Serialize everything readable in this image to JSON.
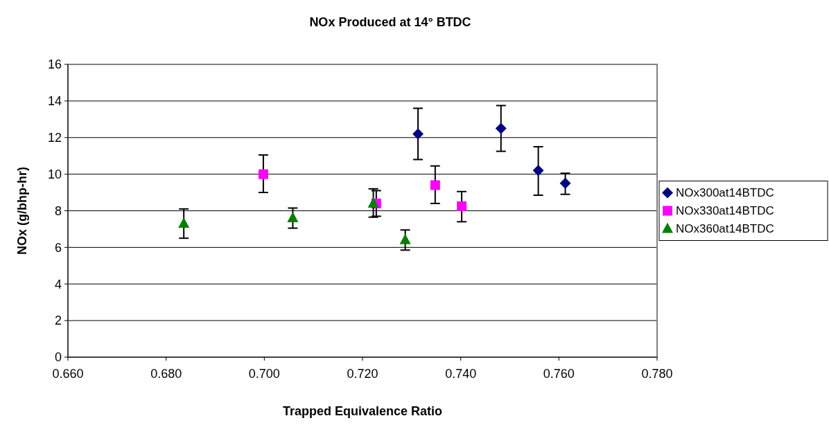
{
  "chart_data": {
    "type": "scatter",
    "title": "NOx Produced at 14° BTDC",
    "xlabel": "Trapped Equivalence Ratio",
    "ylabel": "NOx (g/bhp-hr)",
    "xlim": [
      0.66,
      0.78
    ],
    "xticks": [
      {
        "value": 0.66,
        "label": "0.660"
      },
      {
        "value": 0.68,
        "label": "0.680"
      },
      {
        "value": 0.7,
        "label": "0.700"
      },
      {
        "value": 0.72,
        "label": "0.720"
      },
      {
        "value": 0.74,
        "label": "0.740"
      },
      {
        "value": 0.76,
        "label": "0.760"
      },
      {
        "value": 0.78,
        "label": "0.780"
      }
    ],
    "ylim": [
      0,
      16
    ],
    "yticks": [
      0,
      2,
      4,
      6,
      8,
      10,
      12,
      14,
      16
    ],
    "grid": "y",
    "legend": "right",
    "series": [
      {
        "name": "NOx300at14BTDC",
        "color": "#000080",
        "marker": "diamond",
        "x": [
          0.7313,
          0.7482,
          0.7558,
          0.7613
        ],
        "values": [
          12.2,
          12.5,
          10.2,
          9.5
        ],
        "errors": [
          [
            10.8,
            13.6
          ],
          [
            11.25,
            13.75
          ],
          [
            8.85,
            11.5
          ],
          [
            8.9,
            10.05
          ]
        ]
      },
      {
        "name": "NOx330at14BTDC",
        "color": "#ff00ff",
        "marker": "square",
        "x": [
          0.6998,
          0.7228,
          0.7348,
          0.7402
        ],
        "values": [
          10.0,
          8.4,
          9.4,
          8.25
        ],
        "errors": [
          [
            9.0,
            11.05
          ],
          [
            7.7,
            9.1
          ],
          [
            8.4,
            10.45
          ],
          [
            7.4,
            9.05
          ]
        ]
      },
      {
        "name": "NOx360at14BTDC",
        "color": "#008000",
        "marker": "triangle",
        "x": [
          0.6836,
          0.7058,
          0.7222,
          0.7287
        ],
        "values": [
          7.3,
          7.6,
          8.4,
          6.4
        ],
        "errors": [
          [
            6.5,
            8.1
          ],
          [
            7.05,
            8.15
          ],
          [
            7.65,
            9.2
          ],
          [
            5.85,
            6.95
          ]
        ]
      }
    ]
  }
}
